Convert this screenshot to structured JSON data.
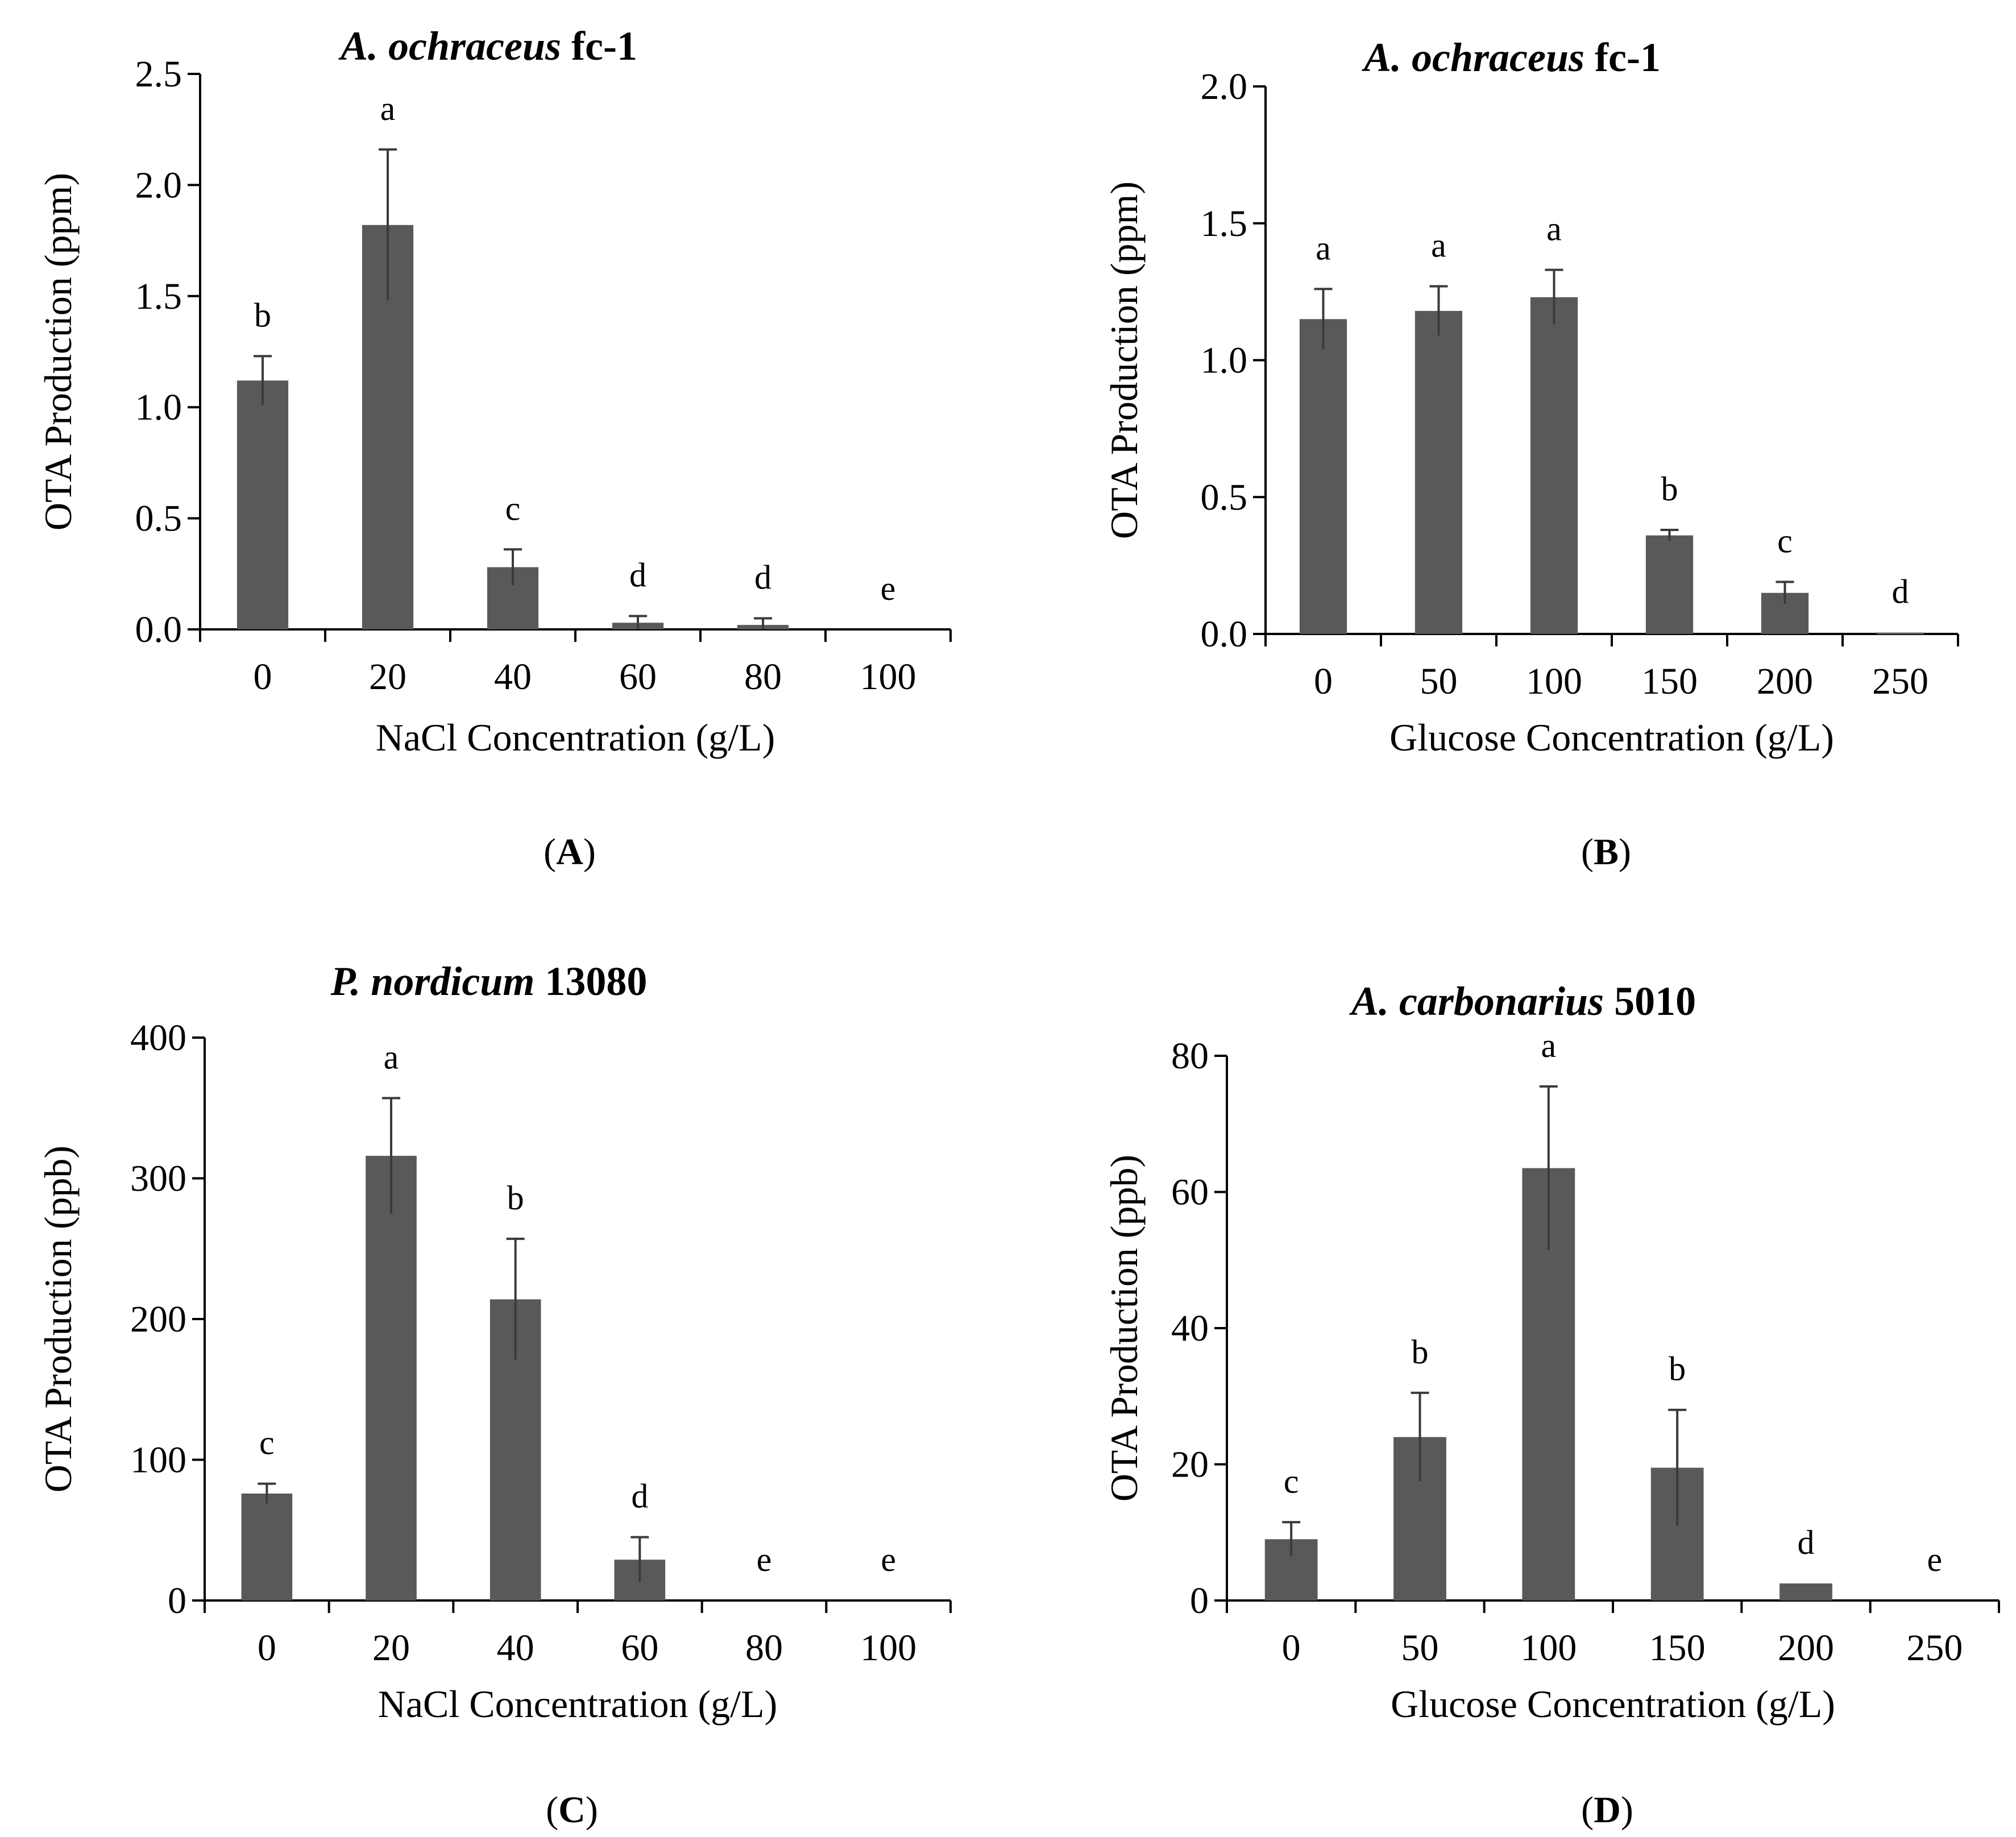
{
  "chart_data": [
    {
      "panel_label": "A",
      "type": "bar",
      "title_italic": "A. ochraceus",
      "title_suffix": " fc-1",
      "xlabel": "NaCl Concentration (g/L)",
      "ylabel": "OTA Production (ppm)",
      "ylim": [
        0,
        2.5
      ],
      "yticks": [
        "0.0",
        "0.5",
        "1.0",
        "1.5",
        "2.0",
        "2.5"
      ],
      "categories": [
        "0",
        "20",
        "40",
        "60",
        "80",
        "100"
      ],
      "values": [
        1.12,
        1.82,
        0.28,
        0.03,
        0.02,
        0
      ],
      "errors": [
        0.11,
        0.34,
        0.08,
        0.03,
        0.03,
        0
      ],
      "significance": [
        "b",
        "a",
        "c",
        "d",
        "d",
        "e"
      ],
      "bar_color": "#595959"
    },
    {
      "panel_label": "B",
      "type": "bar",
      "title_italic": "A. ochraceus",
      "title_suffix": " fc-1",
      "xlabel": "Glucose Concentration (g/L)",
      "ylabel": "OTA Production (ppm)",
      "ylim": [
        0,
        2.0
      ],
      "yticks": [
        "0.0",
        "0.5",
        "1.0",
        "1.5",
        "2.0"
      ],
      "categories": [
        "0",
        "50",
        "100",
        "150",
        "200",
        "250"
      ],
      "values": [
        1.15,
        1.18,
        1.23,
        0.36,
        0.15,
        0.005
      ],
      "errors": [
        0.11,
        0.09,
        0.1,
        0.02,
        0.04,
        0
      ],
      "significance": [
        "a",
        "a",
        "a",
        "b",
        "c",
        "d"
      ],
      "bar_color": "#595959"
    },
    {
      "panel_label": "C",
      "type": "bar",
      "title_italic": "P. nordicum",
      "title_suffix": " 13080",
      "xlabel": "NaCl Concentration (g/L)",
      "ylabel": "OTA Production (ppb)",
      "ylim": [
        0,
        400
      ],
      "yticks": [
        "0",
        "100",
        "200",
        "300",
        "400"
      ],
      "categories": [
        "0",
        "20",
        "40",
        "60",
        "80",
        "100"
      ],
      "values": [
        76,
        316,
        214,
        29,
        0,
        0
      ],
      "errors": [
        7,
        41,
        43,
        16,
        0,
        0
      ],
      "significance": [
        "c",
        "a",
        "b",
        "d",
        "e",
        "e"
      ],
      "bar_color": "#595959"
    },
    {
      "panel_label": "D",
      "type": "bar",
      "title_italic": "A. carbonarius",
      "title_suffix": " 5010",
      "xlabel": "Glucose Concentration (g/L)",
      "ylabel": "OTA Production (ppb)",
      "ylim": [
        0,
        80
      ],
      "yticks": [
        "0",
        "20",
        "40",
        "60",
        "80"
      ],
      "categories": [
        "0",
        "50",
        "100",
        "150",
        "200",
        "250"
      ],
      "values": [
        9,
        24,
        63.5,
        19.5,
        2.5,
        0
      ],
      "errors": [
        2.5,
        6.5,
        12,
        8.5,
        0,
        0
      ],
      "significance": [
        "c",
        "b",
        "a",
        "b",
        "d",
        "e"
      ],
      "bar_color": "#595959"
    }
  ]
}
